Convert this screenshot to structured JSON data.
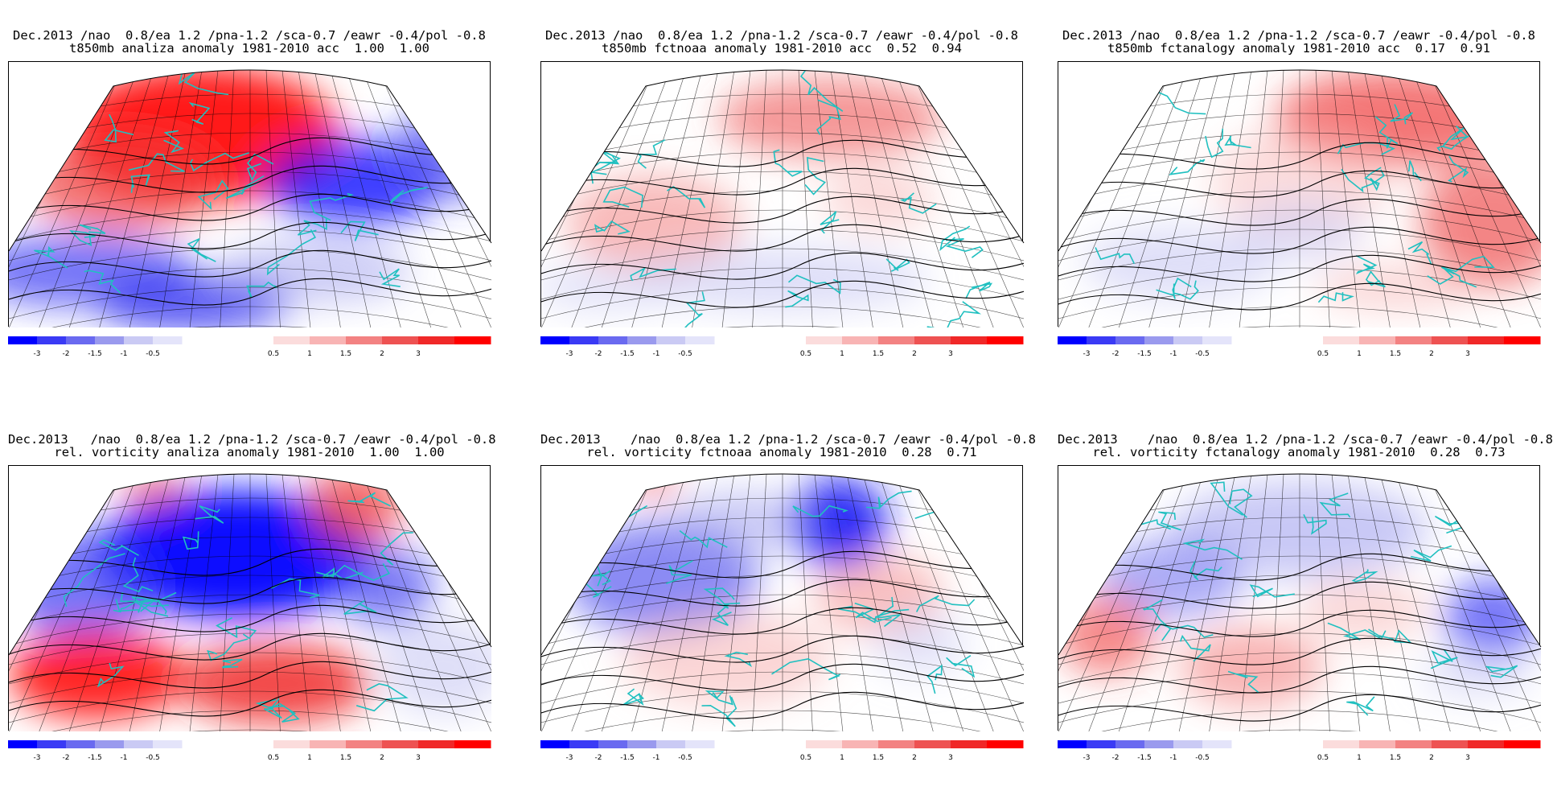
{
  "panels": [
    {
      "title1": "Dec.2013 /nao  0.8/ea 1.2 /pna-1.2 /sca-0.7 /eawr -0.4/pol -0.8",
      "title2": "t850mb analiza anomaly 1981-2010 acc  1.00  1.00",
      "pattern": "a1"
    },
    {
      "title1": "Dec.2013 /nao  0.8/ea 1.2 /pna-1.2 /sca-0.7 /eawr -0.4/pol -0.8",
      "title2": "t850mb fctnoaa anomaly 1981-2010 acc  0.52  0.94",
      "pattern": "a2"
    },
    {
      "title1": "Dec.2013 /nao  0.8/ea 1.2 /pna-1.2 /sca-0.7 /eawr -0.4/pol -0.8",
      "title2": "t850mb fctanalogy anomaly 1981-2010 acc  0.17  0.91",
      "pattern": "a3"
    },
    {
      "title1": "Dec.2013   /nao  0.8/ea 1.2 /pna-1.2 /sca-0.7 /eawr -0.4/pol -0.8",
      "title2": "rel. vorticity analiza anomaly 1981-2010  1.00  1.00",
      "pattern": "b1"
    },
    {
      "title1": "Dec.2013    /nao  0.8/ea 1.2 /pna-1.2 /sca-0.7 /eawr -0.4/pol -0.8",
      "title2": "rel. vorticity fctnoaa anomaly 1981-2010  0.28  0.71",
      "pattern": "b2"
    },
    {
      "title1": "Dec.2013    /nao  0.8/ea 1.2 /pna-1.2 /sca-0.7 /eawr -0.4/pol -0.8",
      "title2": "rel. vorticity fctanalogy anomaly 1981-2010  0.28  0.73",
      "pattern": "b3"
    }
  ],
  "colorbar": {
    "negative_labels": [
      "-3",
      "-2",
      "-1.5",
      "-1",
      "-0.5"
    ],
    "positive_labels": [
      "0.5",
      "1",
      "1.5",
      "2",
      "3"
    ],
    "negative_colors": [
      "#0000ff",
      "#3a3af5",
      "#6a6af0",
      "#9a9aee",
      "#cacaf4",
      "#e4e4fa"
    ],
    "positive_colors": [
      "#fbdcdc",
      "#f8b4b4",
      "#f38282",
      "#ee5252",
      "#f02828",
      "#ff0000"
    ]
  },
  "colors": {
    "land_outline": "#20c0c0",
    "contour": "#000000"
  }
}
